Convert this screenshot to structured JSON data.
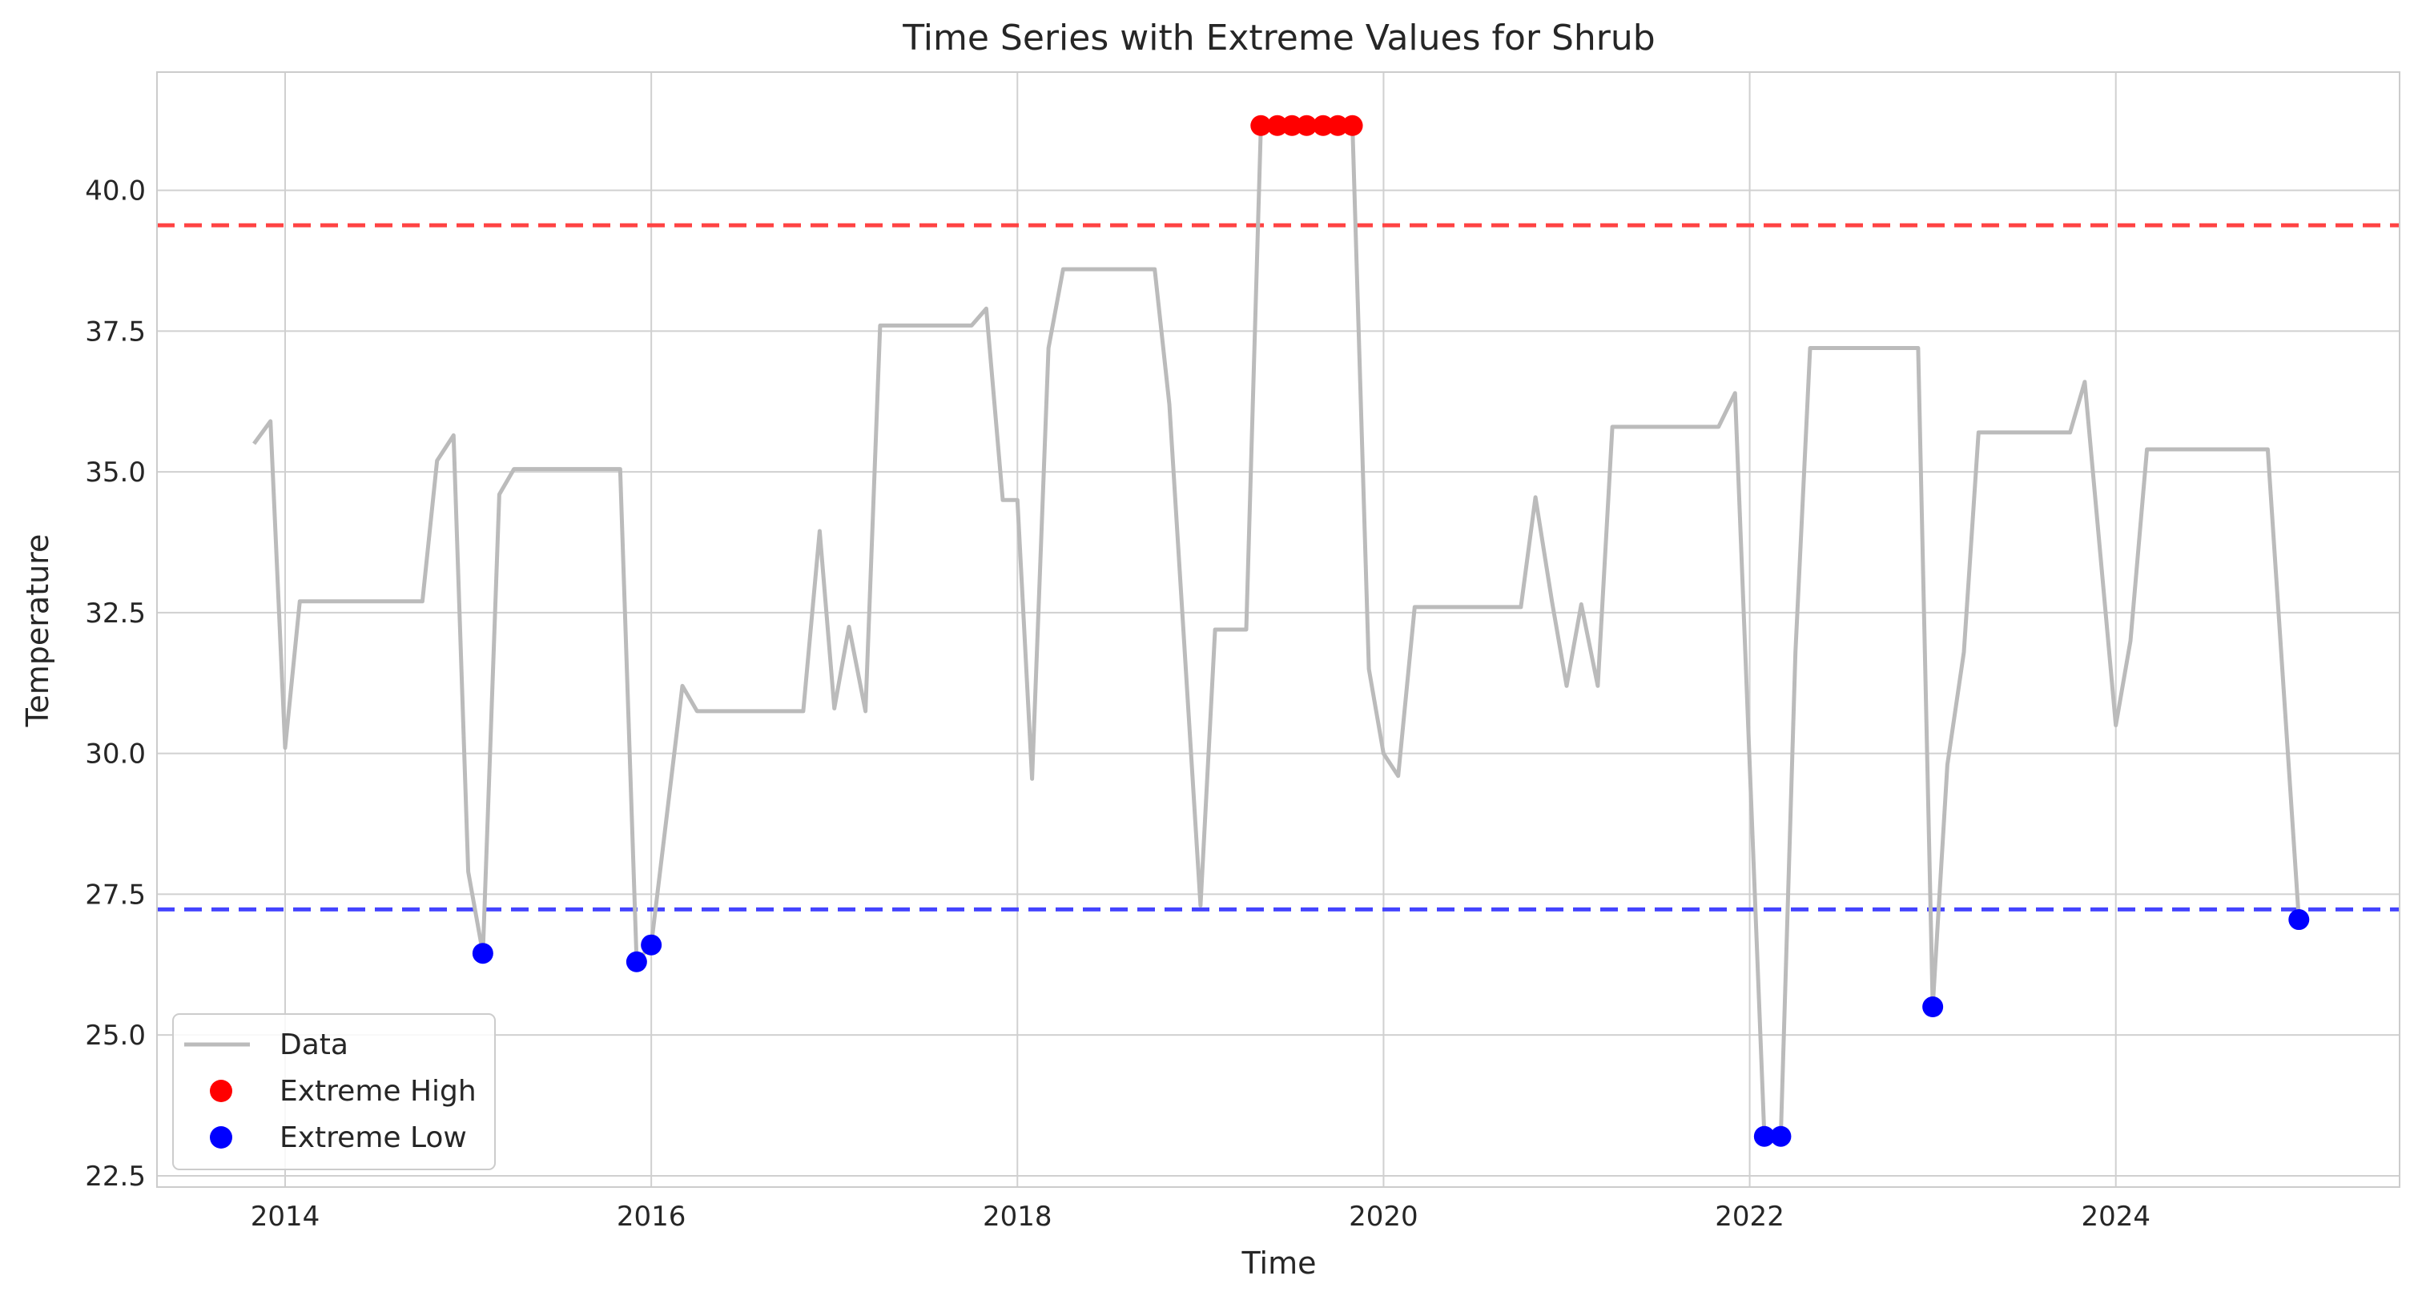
{
  "chart_data": {
    "type": "line",
    "title": "Time Series with Extreme Values for Shrub",
    "xlabel": "Time",
    "ylabel": "Temperature",
    "xlim": [
      2013.3,
      2025.55
    ],
    "ylim": [
      22.3,
      42.1
    ],
    "x_ticks": [
      2014,
      2016,
      2018,
      2020,
      2022,
      2024
    ],
    "y_ticks": [
      22.5,
      25.0,
      27.5,
      30.0,
      32.5,
      35.0,
      37.5,
      40.0
    ],
    "grid": true,
    "legend_position": "lower-left",
    "colors": {
      "data": "#bbbbbb",
      "extreme_high": "#ff0000",
      "extreme_low": "#0000ff",
      "high_threshold": "#ff4444",
      "low_threshold": "#4444ff",
      "grid": "#d0d0d0",
      "frame": "#cccccc"
    },
    "thresholds": {
      "high": 39.38,
      "low": 27.23
    },
    "series": [
      {
        "name": "Data",
        "points": [
          [
            2013.83,
            35.5
          ],
          [
            2013.92,
            35.9
          ],
          [
            2014.0,
            30.1
          ],
          [
            2014.08,
            32.7
          ],
          [
            2014.75,
            32.7
          ],
          [
            2014.83,
            35.2
          ],
          [
            2014.92,
            35.65
          ],
          [
            2015.0,
            27.9
          ],
          [
            2015.08,
            26.45
          ],
          [
            2015.17,
            34.6
          ],
          [
            2015.25,
            35.05
          ],
          [
            2015.83,
            35.05
          ],
          [
            2015.92,
            26.3
          ],
          [
            2016.0,
            26.6
          ],
          [
            2016.17,
            31.2
          ],
          [
            2016.25,
            30.75
          ],
          [
            2016.83,
            30.75
          ],
          [
            2016.92,
            33.95
          ],
          [
            2017.0,
            30.8
          ],
          [
            2017.08,
            32.25
          ],
          [
            2017.17,
            30.75
          ],
          [
            2017.25,
            37.6
          ],
          [
            2017.75,
            37.6
          ],
          [
            2017.83,
            37.9
          ],
          [
            2017.92,
            34.5
          ],
          [
            2018.0,
            34.5
          ],
          [
            2018.08,
            29.55
          ],
          [
            2018.17,
            37.2
          ],
          [
            2018.25,
            38.6
          ],
          [
            2018.75,
            38.6
          ],
          [
            2018.83,
            36.2
          ],
          [
            2019.0,
            27.3
          ],
          [
            2019.08,
            32.2
          ],
          [
            2019.25,
            32.2
          ],
          [
            2019.33,
            41.15
          ],
          [
            2019.42,
            41.15
          ],
          [
            2019.5,
            41.15
          ],
          [
            2019.58,
            41.15
          ],
          [
            2019.67,
            41.15
          ],
          [
            2019.75,
            41.15
          ],
          [
            2019.83,
            41.15
          ],
          [
            2019.92,
            31.5
          ],
          [
            2020.0,
            30.0
          ],
          [
            2020.08,
            29.6
          ],
          [
            2020.17,
            32.6
          ],
          [
            2020.75,
            32.6
          ],
          [
            2020.83,
            34.55
          ],
          [
            2020.92,
            32.7
          ],
          [
            2021.0,
            31.2
          ],
          [
            2021.08,
            32.65
          ],
          [
            2021.17,
            31.2
          ],
          [
            2021.25,
            35.8
          ],
          [
            2021.83,
            35.8
          ],
          [
            2021.92,
            36.4
          ],
          [
            2022.08,
            23.2
          ],
          [
            2022.17,
            23.2
          ],
          [
            2022.25,
            31.8
          ],
          [
            2022.33,
            37.2
          ],
          [
            2022.92,
            37.2
          ],
          [
            2023.0,
            25.5
          ],
          [
            2023.08,
            29.8
          ],
          [
            2023.17,
            31.8
          ],
          [
            2023.25,
            35.7
          ],
          [
            2023.75,
            35.7
          ],
          [
            2023.83,
            36.6
          ],
          [
            2024.0,
            30.5
          ],
          [
            2024.08,
            32.0
          ],
          [
            2024.17,
            35.4
          ],
          [
            2024.83,
            35.4
          ],
          [
            2025.0,
            27.05
          ]
        ]
      },
      {
        "name": "Extreme High",
        "points": [
          [
            2019.33,
            41.15
          ],
          [
            2019.42,
            41.15
          ],
          [
            2019.5,
            41.15
          ],
          [
            2019.58,
            41.15
          ],
          [
            2019.67,
            41.15
          ],
          [
            2019.75,
            41.15
          ],
          [
            2019.83,
            41.15
          ]
        ]
      },
      {
        "name": "Extreme Low",
        "points": [
          [
            2015.08,
            26.45
          ],
          [
            2015.92,
            26.3
          ],
          [
            2016.0,
            26.6
          ],
          [
            2022.08,
            23.2
          ],
          [
            2022.17,
            23.2
          ],
          [
            2023.0,
            25.5
          ],
          [
            2025.0,
            27.05
          ]
        ]
      }
    ]
  }
}
